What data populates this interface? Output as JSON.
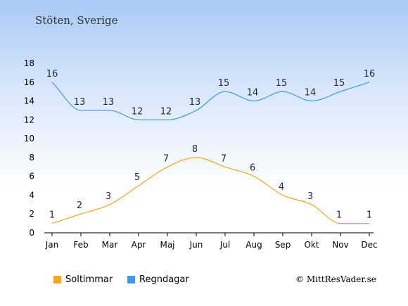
{
  "location": "Stöten, Sverige",
  "copyright": "© MittResVader.se",
  "chart_data": {
    "type": "line",
    "categories": [
      "Jan",
      "Feb",
      "Mar",
      "Apr",
      "Maj",
      "Jun",
      "Jul",
      "Aug",
      "Sep",
      "Okt",
      "Nov",
      "Dec"
    ],
    "ylim": [
      0,
      18
    ],
    "yticks": [
      0,
      2,
      4,
      6,
      8,
      10,
      12,
      14,
      16,
      18
    ],
    "grid": false,
    "legend_position": "bottom-left",
    "series": [
      {
        "name": "Soltimmar",
        "color": "#f5a623",
        "values": [
          1,
          2,
          3,
          5,
          7,
          8,
          7,
          6,
          4,
          3,
          1,
          1
        ]
      },
      {
        "name": "Regndagar",
        "color": "#3b9be8",
        "values": [
          16,
          13,
          13,
          12,
          12,
          13,
          15,
          14,
          15,
          14,
          15,
          16
        ]
      }
    ]
  }
}
